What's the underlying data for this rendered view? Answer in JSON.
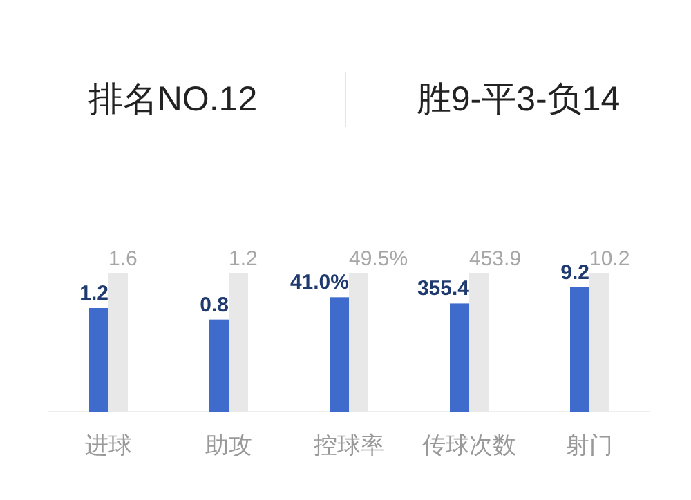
{
  "chart_data": [
    {
      "type": "other",
      "annotations": [
        "排名NO.12",
        "胜9-平3-负14"
      ]
    },
    {
      "type": "bar",
      "xlabel": "进球",
      "categories": [
        null,
        null
      ],
      "values": [
        1.2,
        1.6
      ],
      "colors": [
        "#3e6bcc",
        "#e8e8e8"
      ],
      "value_labels": [
        "1.2",
        "1.6"
      ]
    },
    {
      "type": "bar",
      "xlabel": "助攻",
      "categories": [
        null,
        null
      ],
      "values": [
        0.8,
        1.2
      ],
      "colors": [
        "#3e6bcc",
        "#e8e8e8"
      ],
      "value_labels": [
        "0.8",
        "1.2"
      ]
    },
    {
      "type": "bar",
      "xlabel": "控球率",
      "categories": [
        null,
        null
      ],
      "values": [
        41.0,
        49.5
      ],
      "colors": [
        "#3e6bcc",
        "#e8e8e8"
      ],
      "value_labels": [
        "41.0%",
        "49.5%"
      ]
    },
    {
      "type": "bar",
      "xlabel": "传球次数",
      "categories": [
        null,
        null
      ],
      "values": [
        355.4,
        453.9
      ],
      "colors": [
        "#3e6bcc",
        "#e8e8e8"
      ],
      "value_labels": [
        "355.4",
        "453.9"
      ]
    },
    {
      "type": "bar",
      "xlabel": "射门",
      "categories": [
        null,
        null
      ],
      "values": [
        9.2,
        10.2
      ],
      "colors": [
        "#3e6bcc",
        "#e8e8e8"
      ],
      "value_labels": [
        "9.2",
        "10.2"
      ]
    }
  ]
}
